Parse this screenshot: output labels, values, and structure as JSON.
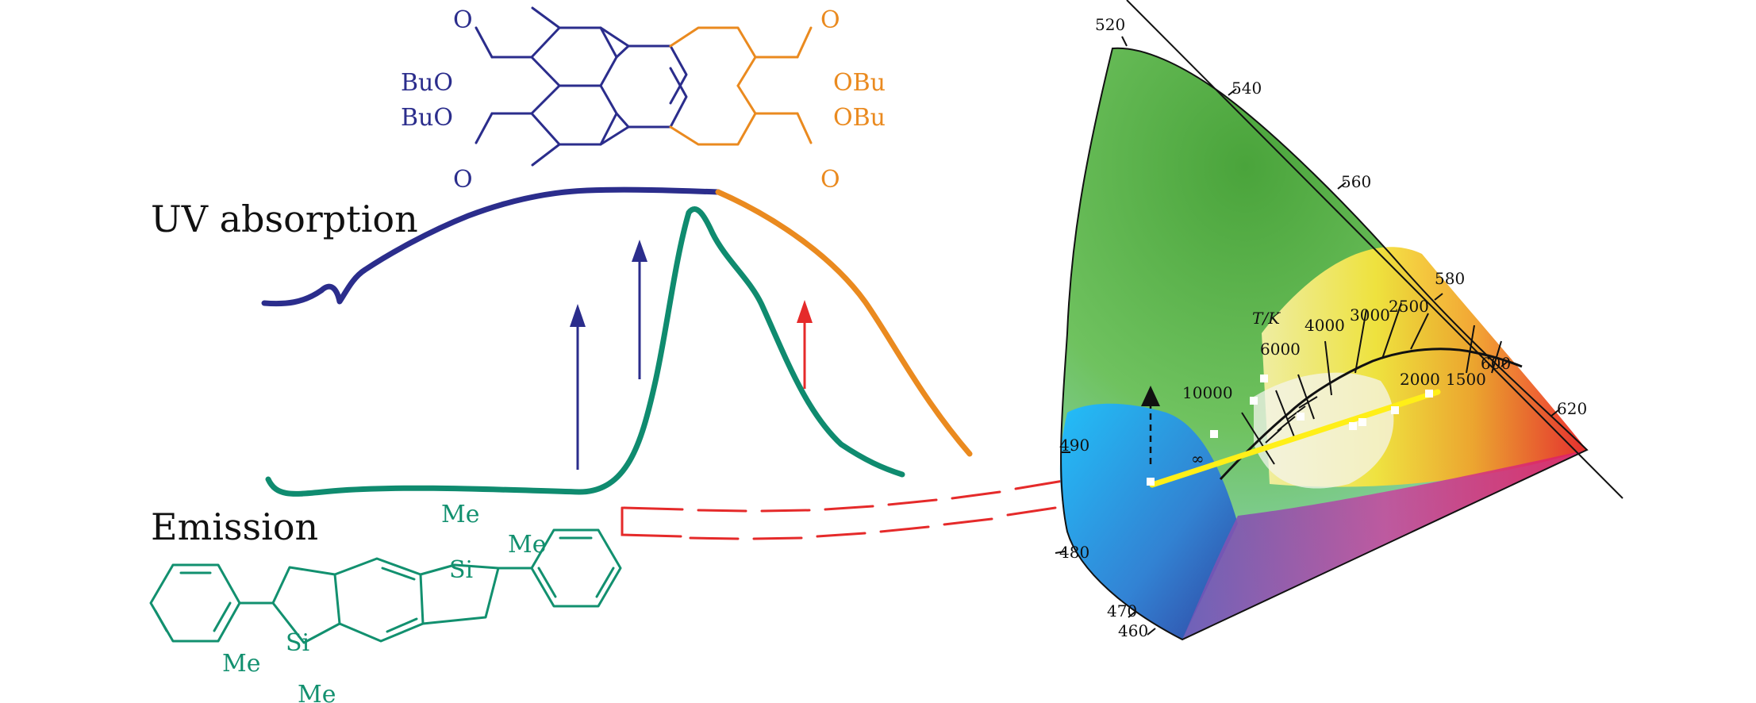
{
  "labels": {
    "uv_absorption": "UV absorption",
    "emission": "Emission"
  },
  "perylene": {
    "left_top_o": "O",
    "left_upper_ester": "BuO",
    "left_lower_ester": "BuO",
    "left_bottom_o": "O",
    "right_top_o": "O",
    "right_upper_ester": "OBu",
    "right_lower_ester": "OBu",
    "right_bottom_o": "O"
  },
  "silole": {
    "me_top": "Me",
    "me_top_right": "Me",
    "si_top": "Si",
    "si_bottom": "Si",
    "me_bottom_left": "Me",
    "me_bottom": "Me"
  },
  "cie": {
    "wavelengths": [
      "520",
      "540",
      "560",
      "580",
      "600",
      "620",
      "490",
      "480",
      "470",
      "460"
    ],
    "temperature_label": "T/K",
    "temperatures": [
      "6000",
      "4000",
      "3000",
      "2500",
      "10000",
      "2000",
      "1500"
    ],
    "infinity": "∞"
  },
  "colors": {
    "blue": "#2b2d8c",
    "orange": "#ea8a1f",
    "green": "#12906f",
    "red": "#e52a2a",
    "yellow": "#ffef18"
  }
}
